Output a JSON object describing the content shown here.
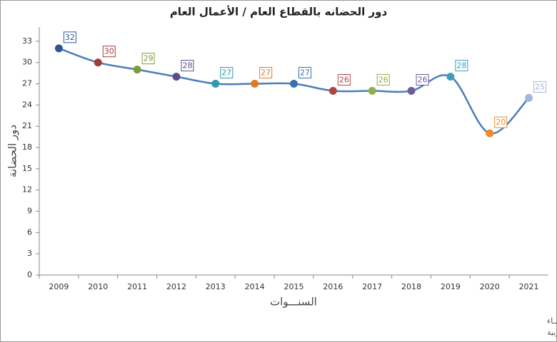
{
  "chart_data": {
    "type": "line",
    "title": "دور الحضانه بالقطاع العام / الأعمال العام",
    "x_label": "السنـــوات",
    "y_label": "دور الحضانة",
    "categories": [
      "2009",
      "2010",
      "2011",
      "2012",
      "2013",
      "2014",
      "2015",
      "2016",
      "2017",
      "2018",
      "2019",
      "2020",
      "2021"
    ],
    "series": [
      {
        "name": "دور الحضانة",
        "color": "#4a7ebb",
        "values": [
          32,
          30,
          29,
          28,
          27,
          27,
          27,
          26,
          26,
          26,
          28,
          20,
          25
        ],
        "point_colors": [
          "#2f5597",
          "#a33b3b",
          "#7f9a3a",
          "#5f4a8b",
          "#2d9aad",
          "#e07b24",
          "#3a6fb0",
          "#b04545",
          "#8fb04f",
          "#6e5a9e",
          "#3a9fb8",
          "#f08a2c",
          "#9fb8d8"
        ]
      }
    ],
    "ylim": [
      0,
      35
    ],
    "yticks": [
      0,
      3,
      6,
      9,
      12,
      15,
      18,
      21,
      24,
      27,
      30,
      33
    ],
    "smooth": true,
    "footnotes": [
      "حقوق الملكية للجهــاز المركزي للتعبئة العــامة والأحصـــاء",
      "المصدر الأساسي للأحصاءات الرسمية لجمهورية مصر العربية"
    ]
  }
}
